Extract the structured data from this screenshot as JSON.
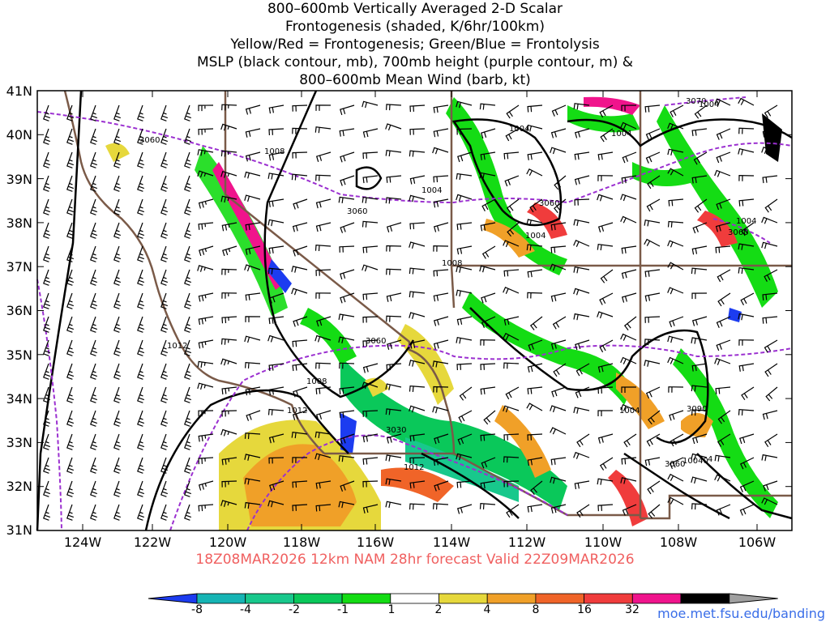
{
  "title": {
    "line1": "800–600mb Vertically Averaged 2-D Scalar",
    "line2": "Frontogenesis (shaded, K/6hr/100km)",
    "line3": "Yellow/Red = Frontogenesis;  Green/Blue = Frontolysis",
    "line4": "MSLP (black contour, mb), 700mb height (purple contour, m) &",
    "line5": "800–600mb Mean Wind (barb, kt)"
  },
  "lat_labels": [
    "41N",
    "40N",
    "39N",
    "38N",
    "37N",
    "36N",
    "35N",
    "34N",
    "33N",
    "32N",
    "31N"
  ],
  "lon_labels": [
    "124W",
    "122W",
    "120W",
    "118W",
    "116W",
    "114W",
    "112W",
    "110W",
    "108W",
    "106W"
  ],
  "valid_text": "18Z08MAR2026 12km NAM 28hr forecast Valid 22Z09MAR2026",
  "colorbar": {
    "labels": [
      "-8",
      "-4",
      "-2",
      "-1",
      "1",
      "2",
      "4",
      "8",
      "16",
      "32"
    ],
    "colors": [
      "#1c3cf0",
      "#16b4b4",
      "#18c88c",
      "#0ac85a",
      "#14dc14",
      "#ffffff",
      "#e6d83c",
      "#f0a028",
      "#f06428",
      "#f03c3c",
      "#f0148c",
      "#000000",
      "#a0a0a0"
    ]
  },
  "contour_labels": {
    "mslp": [
      "1008",
      "1004",
      "1004",
      "1004",
      "1004",
      "1008",
      "1004",
      "1012",
      "1008",
      "1012",
      "1012",
      "1004",
      "10040",
      "4",
      "1004"
    ],
    "height": [
      "3060",
      "3060",
      "3060",
      "3060",
      "3070",
      "3060",
      "3060",
      "3090",
      "3030"
    ]
  },
  "credit": "moe.met.fsu.edu/banding"
}
